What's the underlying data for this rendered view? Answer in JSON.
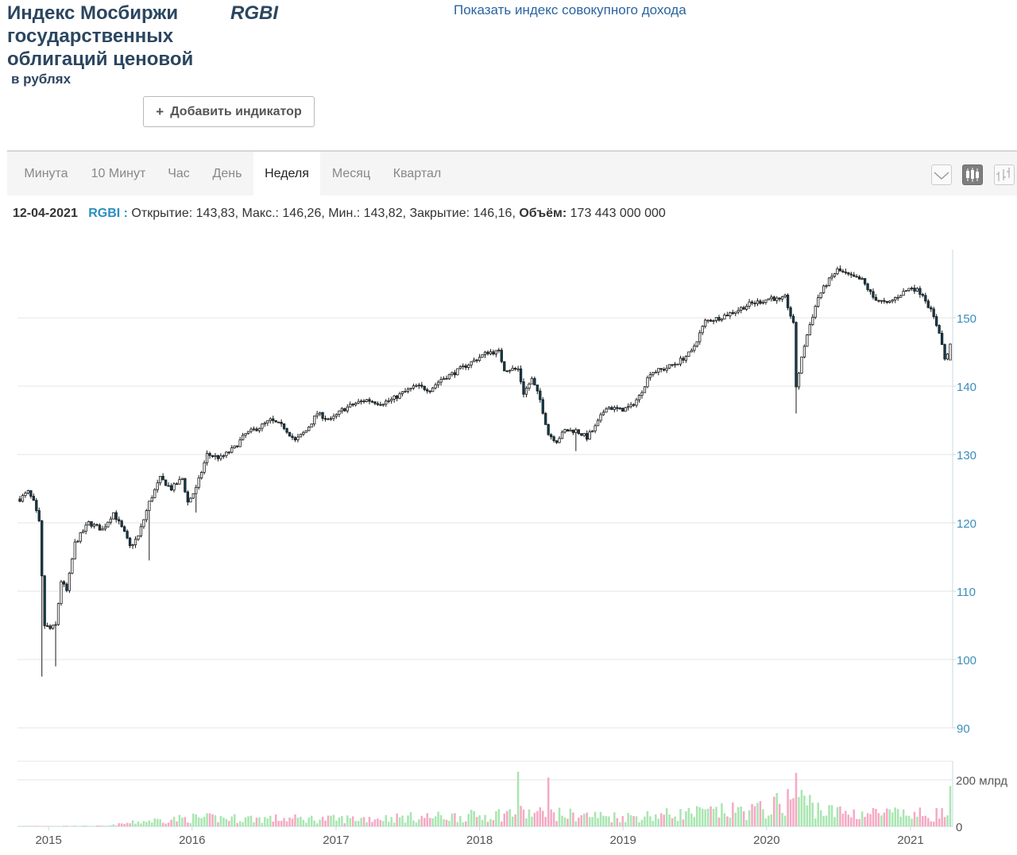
{
  "header": {
    "title": "Индекс Мосбиржи государственных облигаций ценовой",
    "ticker": "RGBI",
    "subtitle": "в рублях",
    "total_return_link": "Показать индекс совокупного дохода",
    "add_indicator_label": "Добавить индикатор"
  },
  "tabs": [
    {
      "label": "Минута"
    },
    {
      "label": "10 Минут"
    },
    {
      "label": "Час"
    },
    {
      "label": "День"
    },
    {
      "label": "Неделя",
      "active": true
    },
    {
      "label": "Месяц"
    },
    {
      "label": "Квартал"
    }
  ],
  "view_buttons": [
    {
      "icon": "line-chart-icon"
    },
    {
      "icon": "candlestick-chart-icon",
      "active": true
    },
    {
      "icon": "ohlc-bar-chart-icon"
    }
  ],
  "info": {
    "date": "12-04-2021",
    "ticker": "RGBI :",
    "ohlc_text": "Открытие: 143,83, Макс.: 146,26, Мин.: 143,82, Закрытие: 146,16,",
    "volume_label": "Объём:",
    "volume_value": "173 443 000 000"
  },
  "colors": {
    "up": "#ffffff",
    "down": "#0d3f57",
    "wick": "#1a1a1a",
    "vol_up": "#a8e6b0",
    "vol_down": "#f5a9c3",
    "grid": "#e6e6e6",
    "axis_text": "#3b8dbd"
  },
  "chart_data": {
    "type": "candlestick",
    "title": "",
    "x_tick_labels": [
      "2015",
      "2016",
      "2017",
      "2018",
      "2019",
      "2020",
      "2021"
    ],
    "x_range": [
      "2014-10-20",
      "2021-04-12"
    ],
    "price_axis": {
      "ticks": [
        90,
        100,
        110,
        120,
        130,
        140,
        150
      ],
      "ylim": [
        90,
        160
      ],
      "side": "right"
    },
    "volume_axis": {
      "ticks": [
        0,
        200
      ],
      "tick_labels": [
        "0",
        "200 млрд"
      ],
      "ylim": [
        0,
        280
      ],
      "unit": "млрд"
    },
    "candle_interval": "week",
    "close_path": [
      [
        "2014-10-20",
        123.5
      ],
      [
        "2014-11-10",
        124.5
      ],
      [
        "2014-11-24",
        123.0
      ],
      [
        "2014-12-08",
        120.0
      ],
      [
        "2014-12-15",
        112.0
      ],
      [
        "2014-12-22",
        105.0
      ],
      [
        "2015-01-05",
        104.5
      ],
      [
        "2015-01-19",
        105.0
      ],
      [
        "2015-02-02",
        111.5
      ],
      [
        "2015-02-16",
        110.0
      ],
      [
        "2015-03-09",
        117.0
      ],
      [
        "2015-04-13",
        120.0
      ],
      [
        "2015-05-18",
        119.0
      ],
      [
        "2015-06-15",
        121.5
      ],
      [
        "2015-07-13",
        118.5
      ],
      [
        "2015-07-27",
        116.5
      ],
      [
        "2015-08-17",
        118.0
      ],
      [
        "2015-09-14",
        123.0
      ],
      [
        "2015-10-12",
        126.5
      ],
      [
        "2015-11-09",
        125.0
      ],
      [
        "2015-12-07",
        126.5
      ],
      [
        "2015-12-21",
        123.0
      ],
      [
        "2016-01-11",
        125.0
      ],
      [
        "2016-02-08",
        130.0
      ],
      [
        "2016-03-14",
        129.5
      ],
      [
        "2016-04-18",
        131.0
      ],
      [
        "2016-05-16",
        133.0
      ],
      [
        "2016-06-20",
        134.0
      ],
      [
        "2016-07-18",
        135.0
      ],
      [
        "2016-08-22",
        134.0
      ],
      [
        "2016-09-19",
        132.0
      ],
      [
        "2016-10-17",
        133.5
      ],
      [
        "2016-11-14",
        136.0
      ],
      [
        "2016-12-19",
        135.0
      ],
      [
        "2017-01-16",
        136.5
      ],
      [
        "2017-02-20",
        137.5
      ],
      [
        "2017-03-20",
        138.0
      ],
      [
        "2017-04-24",
        137.5
      ],
      [
        "2017-05-22",
        138.0
      ],
      [
        "2017-06-19",
        139.0
      ],
      [
        "2017-07-24",
        140.0
      ],
      [
        "2017-08-28",
        139.5
      ],
      [
        "2017-09-25",
        141.0
      ],
      [
        "2017-10-30",
        142.0
      ],
      [
        "2017-11-27",
        143.0
      ],
      [
        "2017-12-25",
        144.0
      ],
      [
        "2018-01-22",
        145.0
      ],
      [
        "2018-02-19",
        145.0
      ],
      [
        "2018-03-05",
        142.5
      ],
      [
        "2018-04-09",
        142.5
      ],
      [
        "2018-04-23",
        139.0
      ],
      [
        "2018-05-14",
        141.0
      ],
      [
        "2018-06-04",
        138.0
      ],
      [
        "2018-06-25",
        133.0
      ],
      [
        "2018-07-16",
        132.0
      ],
      [
        "2018-08-06",
        133.5
      ],
      [
        "2018-09-03",
        133.5
      ],
      [
        "2018-10-01",
        132.5
      ],
      [
        "2018-10-22",
        134.0
      ],
      [
        "2018-11-19",
        137.0
      ],
      [
        "2018-12-24",
        136.5
      ],
      [
        "2019-01-21",
        137.0
      ],
      [
        "2019-02-11",
        138.5
      ],
      [
        "2019-03-11",
        142.0
      ],
      [
        "2019-04-15",
        142.5
      ],
      [
        "2019-05-20",
        143.5
      ],
      [
        "2019-06-24",
        145.0
      ],
      [
        "2019-07-29",
        149.5
      ],
      [
        "2019-09-02",
        150.0
      ],
      [
        "2019-10-14",
        151.0
      ],
      [
        "2019-11-18",
        152.0
      ],
      [
        "2019-12-23",
        152.5
      ],
      [
        "2020-01-13",
        153.0
      ],
      [
        "2020-02-03",
        152.5
      ],
      [
        "2020-02-17",
        153.0
      ],
      [
        "2020-03-09",
        149.0
      ],
      [
        "2020-03-16",
        140.0
      ],
      [
        "2020-03-23",
        142.0
      ],
      [
        "2020-04-06",
        146.0
      ],
      [
        "2020-04-20",
        149.0
      ],
      [
        "2020-05-11",
        153.0
      ],
      [
        "2020-06-01",
        155.0
      ],
      [
        "2020-06-29",
        157.0
      ],
      [
        "2020-08-03",
        156.0
      ],
      [
        "2020-08-31",
        155.5
      ],
      [
        "2020-09-28",
        153.0
      ],
      [
        "2020-11-02",
        152.0
      ],
      [
        "2020-12-07",
        153.5
      ],
      [
        "2021-01-04",
        154.5
      ],
      [
        "2021-02-01",
        153.5
      ],
      [
        "2021-02-22",
        151.0
      ],
      [
        "2021-03-15",
        148.0
      ],
      [
        "2021-03-29",
        144.0
      ],
      [
        "2021-04-05",
        144.5
      ],
      [
        "2021-04-12",
        146.16
      ]
    ],
    "notable_lows": [
      [
        "2014-12-15",
        97.5
      ],
      [
        "2015-01-19",
        99.0
      ],
      [
        "2015-09-14",
        114.5
      ],
      [
        "2016-01-11",
        121.5
      ],
      [
        "2018-09-03",
        130.5
      ],
      [
        "2020-03-16",
        136.0
      ]
    ],
    "last_candle": {
      "date": "2021-04-12",
      "open": 143.83,
      "high": 146.26,
      "low": 143.82,
      "close": 146.16,
      "volume": 173443000000
    },
    "volume_profile_mlrd": [
      [
        "2014-10-20",
        2
      ],
      [
        "2015-06-01",
        3
      ],
      [
        "2015-09-01",
        25
      ],
      [
        "2016-01-01",
        40
      ],
      [
        "2017-01-01",
        35
      ],
      [
        "2018-01-01",
        50
      ],
      [
        "2018-04-01",
        65
      ],
      [
        "2019-01-01",
        45
      ],
      [
        "2020-01-01",
        80
      ],
      [
        "2020-03-16",
        140
      ],
      [
        "2020-06-01",
        70
      ],
      [
        "2021-01-01",
        55
      ],
      [
        "2021-04-12",
        60
      ]
    ],
    "volume_spikes_mlrd": [
      [
        "2018-04-09",
        235
      ],
      [
        "2018-06-25",
        210
      ],
      [
        "2020-03-16",
        230
      ]
    ]
  }
}
